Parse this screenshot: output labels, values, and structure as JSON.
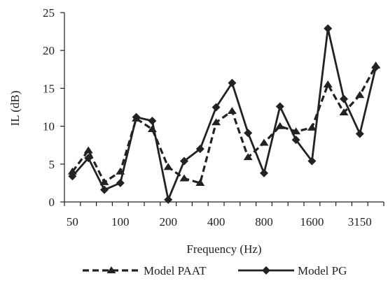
{
  "chart_data": {
    "type": "line",
    "xlabel": "Frequency (Hz)",
    "ylabel": "IL (dB)",
    "ylim": [
      0,
      25
    ],
    "yticks": [
      0,
      5,
      10,
      15,
      20,
      25
    ],
    "x": [
      "50",
      "63",
      "80",
      "100",
      "125",
      "160",
      "200",
      "250",
      "315",
      "400",
      "500",
      "630",
      "800",
      "1000",
      "1250",
      "1600",
      "2000",
      "2500",
      "3150",
      "4000"
    ],
    "x_tick_labels": [
      "50",
      "100",
      "200",
      "400",
      "800",
      "1600",
      "3150"
    ],
    "x_tick_label_indices": [
      0,
      3,
      6,
      9,
      12,
      15,
      18
    ],
    "legend_position": "bottom",
    "grid": false,
    "series": [
      {
        "name": "Model PAAT",
        "style": "dashed",
        "marker": "triangle",
        "values": [
          4.0,
          6.8,
          2.6,
          4.0,
          11.0,
          9.6,
          4.6,
          3.1,
          2.5,
          10.5,
          12.0,
          5.9,
          7.8,
          10.0,
          9.3,
          9.8,
          15.5,
          11.8,
          14.1,
          18.0
        ]
      },
      {
        "name": "Model PG",
        "style": "solid",
        "marker": "diamond",
        "values": [
          3.4,
          5.8,
          1.6,
          2.5,
          11.2,
          10.7,
          0.3,
          5.4,
          7.0,
          12.5,
          15.7,
          9.1,
          3.8,
          12.6,
          8.2,
          5.4,
          22.9,
          13.6,
          9.0,
          17.8
        ]
      }
    ]
  }
}
